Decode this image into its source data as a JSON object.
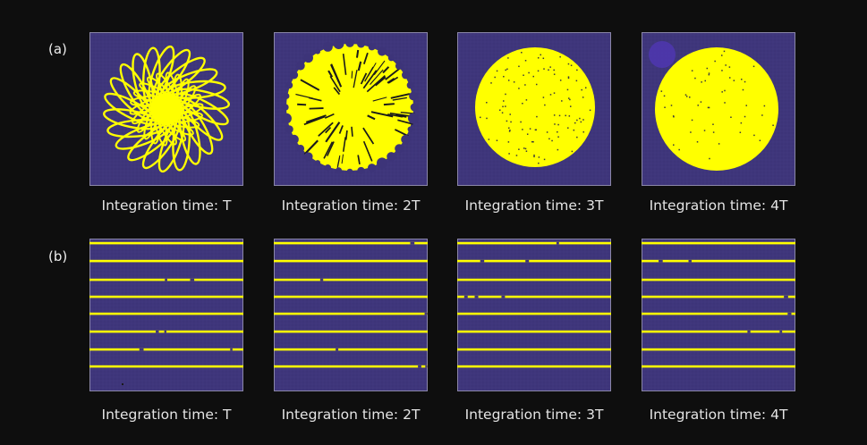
{
  "rows": [
    {
      "label": "(a)",
      "pattern": "disk",
      "panels": [
        {
          "caption": "Integration time: T",
          "stage": 1
        },
        {
          "caption": "Integration time: 2T",
          "stage": 2
        },
        {
          "caption": "Integration time: 3T",
          "stage": 3
        },
        {
          "caption": "Integration time: 4T",
          "stage": 4
        }
      ]
    },
    {
      "label": "(b)",
      "pattern": "lines",
      "panels": [
        {
          "caption": "Integration time: T",
          "stage": 1
        },
        {
          "caption": "Integration time: 2T",
          "stage": 2
        },
        {
          "caption": "Integration time: 3T",
          "stage": 3
        },
        {
          "caption": "Integration time: 4T",
          "stage": 4
        }
      ]
    }
  ],
  "colors": {
    "background": "#0e0e0e",
    "tile_background": "#3d3479",
    "grid": "#4a4188",
    "feature": "#ffff00",
    "text": "#e4e4e4"
  }
}
